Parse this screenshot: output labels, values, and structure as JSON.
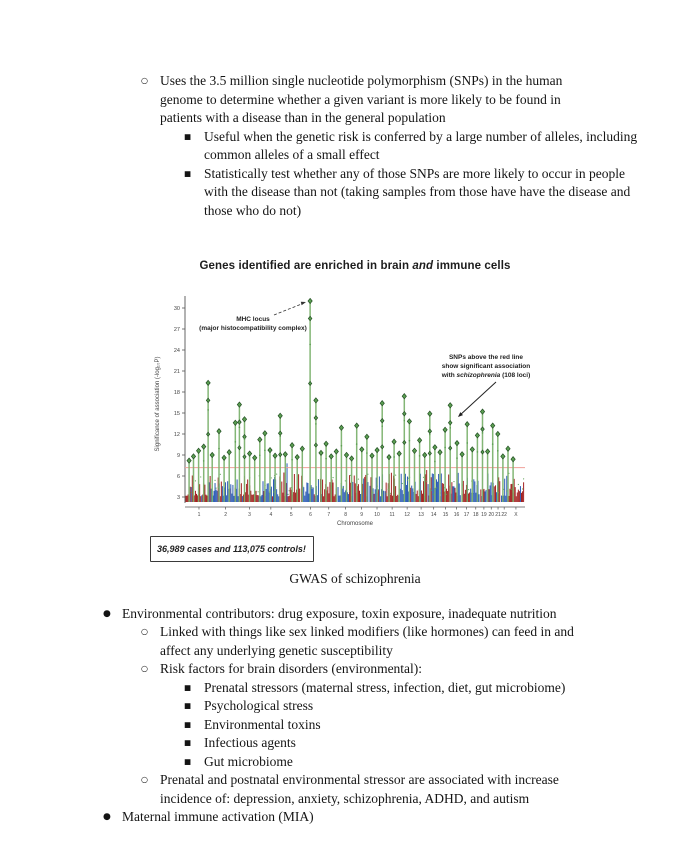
{
  "markers": {
    "l1": "●",
    "l2": "○",
    "l3": "■"
  },
  "content": {
    "bullets_top": {
      "item1": "Uses the 3.5 million single nucleotide polymorphism (SNPs) in the human genome to determine whether a given variant is more likely to be found in patients with a disease than in the general population",
      "sub1": "Useful when the genetic risk is conferred by a large number of alleles, including common alleles of a small effect",
      "sub2": "Statistically test whether any of those SNPs are more likely to occur in people with the disease than not (taking samples from those have have the disease and those who do not)"
    },
    "bullets_bottom": {
      "env": "Environmental contributors:  drug exposure, toxin exposure, inadequate nutrition",
      "linked": "Linked with things like sex linked modifiers (like hormones) can feed in and affect any underlying genetic susceptibility",
      "risk": "Risk factors for brain disorders (environmental):",
      "risk_items": [
        "Prenatal stressors (maternal stress, infection, diet, gut microbiome)",
        "Psychological stress",
        "Environmental toxins",
        "Infectious agents",
        "Gut microbiome"
      ],
      "prenatal": "Prenatal and postnatal environmental stressor are associated with increase incidence of: depression, anxiety, schizophrenia, ADHD, and autism",
      "mia": "Maternal immune activation (MIA)"
    }
  },
  "chart_data": {
    "type": "scatter",
    "subtype": "manhattan",
    "title_parts": [
      "Genes identified are enriched in brain ",
      "and",
      " immune cells"
    ],
    "ylabel": "Significance of association (-log₁₀P)",
    "xlabel": "Chromosome",
    "ylim": [
      3,
      31
    ],
    "yticks": [
      3,
      6,
      9,
      12,
      15,
      18,
      21,
      24,
      27,
      30
    ],
    "categories": [
      "1",
      "2",
      "3",
      "4",
      "5",
      "6",
      "7",
      "8",
      "9",
      "10",
      "11",
      "12",
      "13",
      "14",
      "15",
      "16",
      "17",
      "18",
      "19",
      "20",
      "21",
      "22",
      "X"
    ],
    "chrom_rel_widths": [
      249,
      243,
      198,
      191,
      181,
      171,
      159,
      146,
      141,
      136,
      135,
      134,
      115,
      107,
      102,
      90,
      81,
      78,
      59,
      63,
      48,
      51,
      155
    ],
    "threshold": 7.2,
    "colors": {
      "odd": "#a32020",
      "even": "#2b5bb5",
      "significant": "#5b9e52",
      "stem": "#7db36f",
      "marker_stroke": "#234f23",
      "threshold_line": "#f0a09a",
      "axis": "#555555"
    },
    "peaks": [
      {
        "x": 0.012,
        "v": 8.2
      },
      {
        "x": 0.025,
        "v": 8.8
      },
      {
        "x": 0.04,
        "v": 9.6
      },
      {
        "x": 0.055,
        "v": 10.2
      },
      {
        "x": 0.068,
        "v": 19.3
      },
      {
        "x": 0.08,
        "v": 9.0
      },
      {
        "x": 0.1,
        "v": 12.4
      },
      {
        "x": 0.115,
        "v": 8.6
      },
      {
        "x": 0.13,
        "v": 9.4
      },
      {
        "x": 0.148,
        "v": 13.6
      },
      {
        "x": 0.16,
        "v": 16.2
      },
      {
        "x": 0.175,
        "v": 14.1
      },
      {
        "x": 0.19,
        "v": 9.2
      },
      {
        "x": 0.205,
        "v": 8.6
      },
      {
        "x": 0.22,
        "v": 11.2
      },
      {
        "x": 0.235,
        "v": 12.1
      },
      {
        "x": 0.25,
        "v": 9.7
      },
      {
        "x": 0.265,
        "v": 8.9
      },
      {
        "x": 0.28,
        "v": 14.6
      },
      {
        "x": 0.295,
        "v": 9.1
      },
      {
        "x": 0.315,
        "v": 10.4
      },
      {
        "x": 0.33,
        "v": 8.7
      },
      {
        "x": 0.345,
        "v": 9.9
      },
      {
        "x": 0.368,
        "v": 31.0
      },
      {
        "x": 0.385,
        "v": 16.8
      },
      {
        "x": 0.4,
        "v": 9.3
      },
      {
        "x": 0.415,
        "v": 10.6
      },
      {
        "x": 0.43,
        "v": 8.8
      },
      {
        "x": 0.445,
        "v": 9.5
      },
      {
        "x": 0.46,
        "v": 12.9
      },
      {
        "x": 0.475,
        "v": 9.0
      },
      {
        "x": 0.49,
        "v": 8.5
      },
      {
        "x": 0.505,
        "v": 13.2
      },
      {
        "x": 0.52,
        "v": 9.8
      },
      {
        "x": 0.535,
        "v": 11.6
      },
      {
        "x": 0.55,
        "v": 8.9
      },
      {
        "x": 0.565,
        "v": 9.7
      },
      {
        "x": 0.58,
        "v": 16.4
      },
      {
        "x": 0.6,
        "v": 8.7
      },
      {
        "x": 0.615,
        "v": 10.9
      },
      {
        "x": 0.63,
        "v": 9.2
      },
      {
        "x": 0.645,
        "v": 17.4
      },
      {
        "x": 0.66,
        "v": 13.8
      },
      {
        "x": 0.675,
        "v": 9.6
      },
      {
        "x": 0.69,
        "v": 11.1
      },
      {
        "x": 0.705,
        "v": 9.0
      },
      {
        "x": 0.72,
        "v": 14.9
      },
      {
        "x": 0.735,
        "v": 10.1
      },
      {
        "x": 0.75,
        "v": 9.4
      },
      {
        "x": 0.765,
        "v": 12.6
      },
      {
        "x": 0.78,
        "v": 16.1
      },
      {
        "x": 0.8,
        "v": 10.7
      },
      {
        "x": 0.815,
        "v": 9.1
      },
      {
        "x": 0.83,
        "v": 13.4
      },
      {
        "x": 0.845,
        "v": 9.8
      },
      {
        "x": 0.86,
        "v": 11.8
      },
      {
        "x": 0.875,
        "v": 15.2
      },
      {
        "x": 0.89,
        "v": 9.5
      },
      {
        "x": 0.905,
        "v": 13.2
      },
      {
        "x": 0.92,
        "v": 12.0
      },
      {
        "x": 0.935,
        "v": 8.8
      },
      {
        "x": 0.95,
        "v": 9.9
      },
      {
        "x": 0.965,
        "v": 8.4
      }
    ],
    "annotations": {
      "mhc": {
        "line1": "MHC locus",
        "line2": "(major histocompatibility complex)"
      },
      "snps": {
        "line1": "SNPs above the red line",
        "line2": "show significant association",
        "line3_pre": "with ",
        "line3_italic": "schizophrenia",
        "line3_post": " (108 loci)"
      }
    },
    "caption_box": "36,989 cases and 113,075 controls!",
    "figure_caption": "GWAS of schizophrenia"
  }
}
